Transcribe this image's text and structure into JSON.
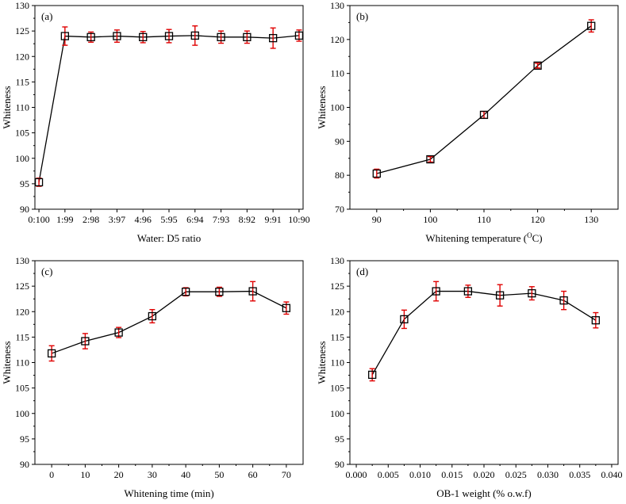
{
  "chart_data": [
    {
      "type": "line",
      "panel_label": "(a)",
      "xlabel": "Water: D5 ratio",
      "ylabel": "Whiteness",
      "ylim": [
        90,
        130
      ],
      "yticks": [
        90,
        95,
        100,
        105,
        110,
        115,
        120,
        125,
        130
      ],
      "categories": [
        "0:100",
        "1:99",
        "2:98",
        "3:97",
        "4:96",
        "5:95",
        "6:94",
        "7:93",
        "8:92",
        "9:91",
        "10:90"
      ],
      "values": [
        95.3,
        124.0,
        123.8,
        124.0,
        123.8,
        124.0,
        124.1,
        123.8,
        123.8,
        123.6,
        124.1
      ],
      "errors": [
        0.8,
        1.8,
        1.0,
        1.2,
        1.1,
        1.3,
        1.9,
        1.2,
        1.2,
        2.0,
        1.1
      ],
      "marker": "open-square",
      "line_color": "#000000",
      "error_color": "#e00000",
      "grid": false
    },
    {
      "type": "line",
      "panel_label": "(b)",
      "xlabel_main": "Whitening temperature (",
      "xlabel_sup": "O",
      "xlabel_unit": "C)",
      "ylabel": "Whiteness",
      "ylim": [
        70,
        130
      ],
      "xlim": [
        85,
        135
      ],
      "yticks": [
        70,
        80,
        90,
        100,
        110,
        120,
        130
      ],
      "xticks": [
        90,
        100,
        110,
        120,
        130
      ],
      "x": [
        90,
        100,
        110,
        120,
        130
      ],
      "values": [
        80.5,
        84.7,
        97.8,
        112.3,
        124.0
      ],
      "errors": [
        1.3,
        0.8,
        1.0,
        0.7,
        1.8
      ],
      "marker": "open-square",
      "line_color": "#000000",
      "error_color": "#e00000",
      "grid": false
    },
    {
      "type": "line",
      "panel_label": "(c)",
      "xlabel": "Whitening time (min)",
      "ylabel": "Whiteness",
      "ylim": [
        90,
        130
      ],
      "xlim": [
        -5,
        75
      ],
      "yticks": [
        90,
        95,
        100,
        105,
        110,
        115,
        120,
        125,
        130
      ],
      "xticks": [
        0,
        10,
        20,
        30,
        40,
        50,
        60,
        70
      ],
      "x": [
        0,
        10,
        20,
        30,
        40,
        50,
        60,
        70
      ],
      "values": [
        111.8,
        114.2,
        115.9,
        119.1,
        123.9,
        123.9,
        124.0,
        120.7
      ],
      "errors": [
        1.5,
        1.5,
        1.0,
        1.3,
        0.8,
        0.9,
        1.9,
        1.2
      ],
      "marker": "open-square",
      "line_color": "#000000",
      "error_color": "#e00000",
      "grid": false
    },
    {
      "type": "line",
      "panel_label": "(d)",
      "xlabel": "OB-1 weight (% o.w.f)",
      "ylabel": "Whiteness",
      "ylim": [
        90,
        130
      ],
      "xlim": [
        -0.001,
        0.041
      ],
      "yticks": [
        90,
        95,
        100,
        105,
        110,
        115,
        120,
        125,
        130
      ],
      "xticks": [
        0.0,
        0.005,
        0.01,
        0.015,
        0.02,
        0.025,
        0.03,
        0.035,
        0.04
      ],
      "xtick_labels": [
        "0.000",
        "0.005",
        "0.010",
        "0.015",
        "0.020",
        "0.025",
        "0.030",
        "0.035",
        "0.040"
      ],
      "x": [
        0.0025,
        0.0075,
        0.0125,
        0.0175,
        0.0225,
        0.0275,
        0.0325,
        0.0375
      ],
      "values": [
        107.6,
        118.5,
        124.0,
        124.0,
        123.2,
        123.6,
        122.2,
        118.3
      ],
      "errors": [
        1.2,
        1.8,
        1.9,
        1.2,
        2.1,
        1.3,
        1.8,
        1.5
      ],
      "marker": "open-square",
      "line_color": "#000000",
      "error_color": "#e00000",
      "grid": false
    }
  ]
}
